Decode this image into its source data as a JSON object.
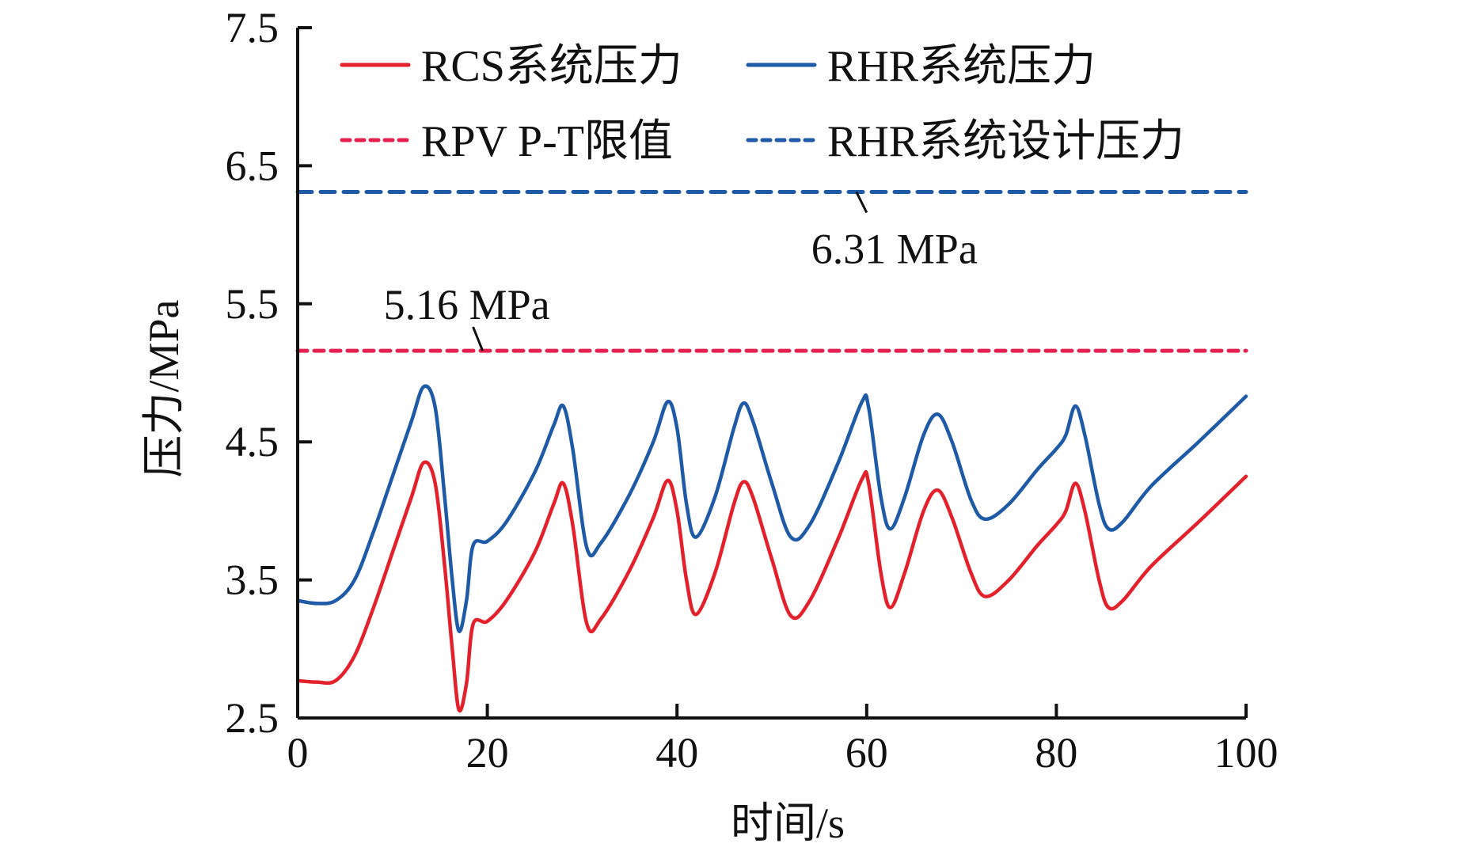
{
  "chart_data": {
    "type": "line",
    "title": "",
    "xlabel": "时间/s",
    "ylabel": "压力/MPa",
    "xlim": [
      0,
      100
    ],
    "ylim": [
      2.5,
      7.5
    ],
    "xticks": [
      0,
      20,
      40,
      60,
      80,
      100
    ],
    "xtick_labels": [
      "0",
      "20",
      "40",
      "60",
      "80",
      "100"
    ],
    "yticks": [
      2.5,
      3.5,
      4.5,
      5.5,
      6.5,
      7.5
    ],
    "ytick_labels": [
      "2.5",
      "3.5",
      "4.5",
      "5.5",
      "6.5",
      "7.5"
    ],
    "grid": false,
    "legend_position": "top",
    "series": [
      {
        "name": "RCS系统压力",
        "style": "solid",
        "color": "#e3202b",
        "x": [
          0,
          2,
          4,
          6,
          8,
          10,
          12,
          13.3,
          14.5,
          15.5,
          16.3,
          17,
          17.8,
          18.5,
          20,
          22,
          25,
          27,
          28,
          29,
          30.5,
          32,
          35,
          37.5,
          39,
          40,
          41,
          42,
          44,
          46,
          47,
          48,
          50,
          52,
          54,
          57,
          59.5,
          60.2,
          61.5,
          62.5,
          64,
          66,
          67.5,
          69,
          71,
          72.5,
          75,
          78,
          80,
          81,
          82,
          83,
          84.5,
          85.5,
          87,
          90,
          95,
          100
        ],
        "y": [
          2.77,
          2.76,
          2.77,
          2.95,
          3.3,
          3.7,
          4.1,
          4.35,
          4.2,
          3.6,
          3.0,
          2.56,
          2.75,
          3.18,
          3.2,
          3.35,
          3.7,
          4.05,
          4.2,
          3.9,
          3.18,
          3.22,
          3.57,
          3.95,
          4.22,
          4.0,
          3.5,
          3.25,
          3.55,
          4.05,
          4.21,
          4.1,
          3.65,
          3.24,
          3.35,
          3.8,
          4.23,
          4.2,
          3.55,
          3.3,
          3.55,
          4.0,
          4.15,
          3.95,
          3.55,
          3.38,
          3.5,
          3.75,
          3.9,
          4.0,
          4.2,
          4.0,
          3.5,
          3.3,
          3.35,
          3.6,
          3.92,
          4.25
        ]
      },
      {
        "name": "RHR系统压力",
        "style": "solid",
        "color": "#1f5aa6",
        "x": [
          0,
          2,
          4,
          6,
          8,
          10,
          12,
          13.3,
          14.5,
          15.5,
          16.3,
          17,
          17.8,
          18.5,
          20,
          22,
          25,
          27,
          28,
          29,
          30.5,
          32,
          35,
          37.5,
          39,
          40,
          41,
          42,
          44,
          46,
          47,
          48,
          50,
          52,
          54,
          57,
          59.5,
          60.2,
          61.5,
          62.5,
          64,
          66,
          67.5,
          69,
          71,
          72.5,
          75,
          78,
          80,
          81,
          82,
          83,
          84.5,
          85.5,
          87,
          90,
          95,
          100
        ],
        "y": [
          3.35,
          3.33,
          3.35,
          3.5,
          3.85,
          4.25,
          4.65,
          4.9,
          4.75,
          4.1,
          3.5,
          3.13,
          3.35,
          3.75,
          3.78,
          3.92,
          4.28,
          4.62,
          4.76,
          4.45,
          3.73,
          3.77,
          4.12,
          4.5,
          4.79,
          4.6,
          4.05,
          3.81,
          4.1,
          4.6,
          4.78,
          4.65,
          4.2,
          3.81,
          3.9,
          4.35,
          4.79,
          4.75,
          4.1,
          3.87,
          4.1,
          4.55,
          4.7,
          4.5,
          4.08,
          3.94,
          4.05,
          4.3,
          4.45,
          4.55,
          4.76,
          4.55,
          4.05,
          3.87,
          3.92,
          4.18,
          4.5,
          4.83
        ]
      },
      {
        "name": "RPV P-T限值",
        "style": "dashed",
        "color": "#e3204f",
        "x": [
          0,
          100
        ],
        "y": [
          5.16,
          5.16
        ]
      },
      {
        "name": "RHR系统设计压力",
        "style": "dashed",
        "color": "#1f5aa6",
        "x": [
          0,
          100
        ],
        "y": [
          6.31,
          6.31
        ]
      }
    ],
    "annotations": [
      {
        "text": "6.31 MPa",
        "x": 60,
        "y": 6.31,
        "series": "RHR系统设计压力"
      },
      {
        "text": "5.16 MPa",
        "x": 19.5,
        "y": 5.16,
        "series": "RPV P-T限值"
      }
    ]
  }
}
